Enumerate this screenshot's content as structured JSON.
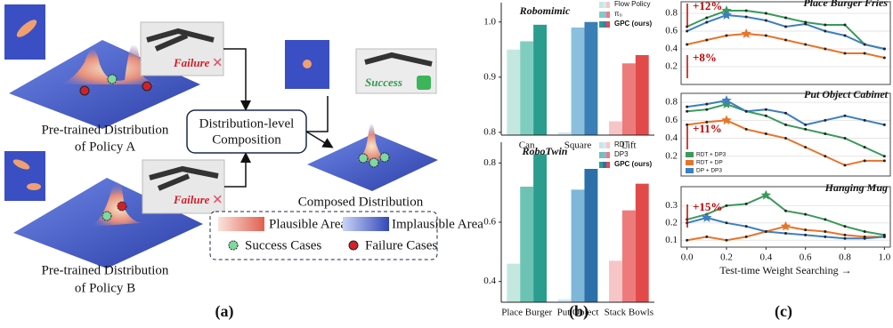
{
  "panel_a": {
    "label": "(a)",
    "failure_a": "Failure",
    "success": "Success",
    "caption_a": [
      "Pre-trained Distribution",
      "of Policy A"
    ],
    "composition": [
      "Distribution-level",
      "Composition"
    ],
    "composed": "Composed Distribution",
    "failure_b": "Failure",
    "caption_b": [
      "Pre-trained Distribution",
      "of Policy B"
    ],
    "legend": [
      "Plausible Area",
      "Implausible Area",
      "Success Cases",
      "Failure Cases"
    ]
  },
  "panel_b_label": "(b)",
  "panel_c_label": "(c)",
  "chart_data": [
    {
      "type": "bar",
      "title": "Robomimic",
      "categories": [
        "Can",
        "Square",
        "Lift"
      ],
      "series": [
        {
          "name": "Flow Policy",
          "colors": [
            "#c4e8e0",
            "#d5e8f3",
            "#f6c6c6"
          ],
          "values": [
            0.95,
            0.8,
            0.82
          ]
        },
        {
          "name": "π₀",
          "colors": [
            "#7fcdbf",
            "#8ac0dd",
            "#ee7b7b"
          ],
          "values": [
            0.965,
            0.99,
            0.925
          ]
        },
        {
          "name": "GPC (ours)",
          "colors": [
            "#2a9d8f",
            "#3a7fb5",
            "#e24a4a"
          ],
          "values": [
            0.995,
            1.0,
            0.94
          ]
        }
      ],
      "ylim": [
        0.795,
        1.035
      ],
      "yticks": [
        0.8,
        0.9,
        {
          "value": 1.0,
          "label": "1.0"
        }
      ]
    },
    {
      "type": "bar",
      "title": "RoboTwin",
      "categories": [
        "Place Burger",
        "Put Object",
        "Stack Bowls"
      ],
      "series": [
        {
          "name": "RDT",
          "colors": [
            "#c4e8e0",
            "#d5e8f3",
            "#f6c6c6"
          ],
          "values": [
            0.46,
            0.34,
            0.47
          ]
        },
        {
          "name": "DP3",
          "colors": [
            "#6cc3b3",
            "#7fb7d9",
            "#ee7b7b"
          ],
          "values": [
            0.72,
            0.71,
            0.64
          ]
        },
        {
          "name": "GPC (ours)",
          "colors": [
            "#2a9d8f",
            "#2d6fa8",
            "#e24a4a"
          ],
          "values": [
            0.83,
            0.78,
            0.73
          ]
        }
      ],
      "ylim": [
        0.33,
        0.87
      ],
      "yticks": [
        0.4,
        0.6,
        0.8
      ]
    },
    {
      "type": "line",
      "title": "Place Burger Fries",
      "annotations": [
        "+12%",
        "+8%"
      ],
      "x": [
        0,
        0.1,
        0.2,
        0.3,
        0.4,
        0.5,
        0.6,
        0.7,
        0.8,
        0.9,
        1.0
      ],
      "xlim": [
        -0.03,
        1.03
      ],
      "series": [
        {
          "color": "#3a9a5a",
          "values": [
            0.65,
            0.75,
            0.83,
            0.83,
            0.8,
            0.75,
            0.7,
            0.67,
            0.67,
            0.45,
            0.4
          ]
        },
        {
          "color": "#e8742a",
          "values": [
            0.45,
            0.5,
            0.55,
            0.57,
            0.55,
            0.5,
            0.45,
            0.4,
            0.35,
            0.35,
            0.3
          ]
        },
        {
          "color": "#3d7fc0",
          "values": [
            0.6,
            0.7,
            0.78,
            0.76,
            0.72,
            0.65,
            0.68,
            0.6,
            0.55,
            0.45,
            0.4
          ]
        }
      ],
      "ylim": [
        0,
        0.93
      ],
      "yticks": [
        0.2,
        0.4,
        0.6,
        0.8
      ]
    },
    {
      "type": "line",
      "title": "Put Object Cabinet",
      "annotations": [
        "+11%"
      ],
      "x": [
        0,
        0.1,
        0.2,
        0.3,
        0.4,
        0.5,
        0.6,
        0.7,
        0.8,
        0.9,
        1.0
      ],
      "xlim": [
        -0.03,
        1.03
      ],
      "series": [
        {
          "name": "RDT + DP3",
          "color": "#3a9a5a",
          "values": [
            0.7,
            0.72,
            0.78,
            0.7,
            0.65,
            0.55,
            0.5,
            0.45,
            0.4,
            0.3,
            0.2
          ]
        },
        {
          "name": "RDT + DP",
          "color": "#e8742a",
          "values": [
            0.55,
            0.58,
            0.6,
            0.5,
            0.45,
            0.4,
            0.3,
            0.2,
            0.1,
            0.15,
            0.15
          ]
        },
        {
          "name": "DP + DP3",
          "color": "#3d7fc0",
          "values": [
            0.75,
            0.78,
            0.82,
            0.7,
            0.72,
            0.68,
            0.55,
            0.6,
            0.65,
            0.6,
            0.55
          ]
        }
      ],
      "ylim": [
        -0.02,
        0.9
      ],
      "yticks": [
        0.2,
        0.4,
        0.6,
        0.8
      ]
    },
    {
      "type": "line",
      "title": "Hanging Mug",
      "annotations": [
        "+15%"
      ],
      "x": [
        0,
        0.1,
        0.2,
        0.3,
        0.4,
        0.5,
        0.6,
        0.7,
        0.8,
        0.9,
        1.0
      ],
      "xlim": [
        -0.03,
        1.03
      ],
      "xticks": [
        {
          "value": 0,
          "label": "0.0"
        },
        0.2,
        0.4,
        0.6,
        0.8,
        {
          "value": 1.0,
          "label": "1.0"
        }
      ],
      "xlabel": "Test-time Weight Searching →",
      "series": [
        {
          "color": "#3a9a5a",
          "values": [
            0.22,
            0.25,
            0.3,
            0.31,
            0.36,
            0.27,
            0.25,
            0.22,
            0.18,
            0.15,
            0.13
          ]
        },
        {
          "color": "#e8742a",
          "values": [
            0.1,
            0.12,
            0.1,
            0.12,
            0.15,
            0.18,
            0.16,
            0.15,
            0.13,
            0.12,
            0.12
          ]
        },
        {
          "color": "#3d7fc0",
          "values": [
            0.2,
            0.23,
            0.2,
            0.18,
            0.15,
            0.14,
            0.13,
            0.12,
            0.11,
            0.11,
            0.12
          ]
        }
      ],
      "ylim": [
        0.06,
        0.41
      ],
      "yticks": [
        0.1,
        0.2,
        0.3
      ]
    }
  ]
}
